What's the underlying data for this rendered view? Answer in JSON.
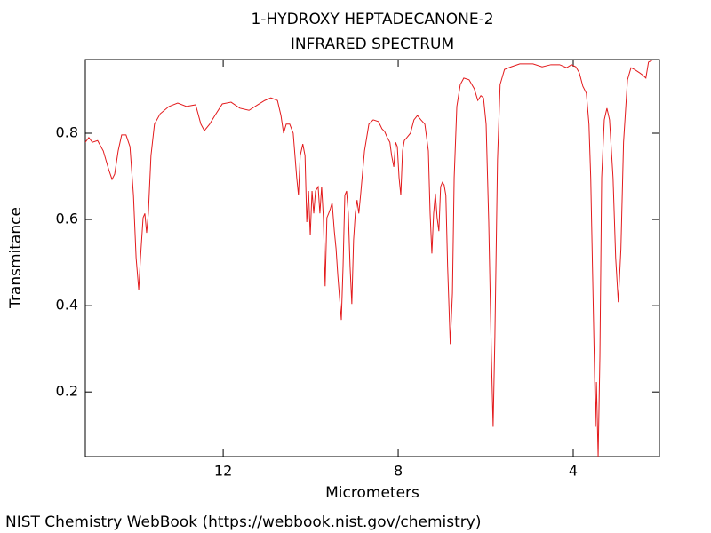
{
  "chart_data": {
    "type": "line",
    "title": "1-HYDROXY HEPTADECANONE-2",
    "subtitle": "INFRARED SPECTRUM",
    "x_label": "Micrometers",
    "y_label": "Transmitance",
    "source": "NIST Chemistry WebBook (https://webbook.nist.gov/chemistry)",
    "xlim": [
      15.15,
      2.03
    ],
    "ylim": [
      0.05,
      0.971
    ],
    "xticks": [
      12,
      8,
      4
    ],
    "yticks": [
      0.2,
      0.4,
      0.6,
      0.8
    ],
    "grid": false,
    "x": [
      15.15,
      15.07,
      14.99,
      14.87,
      14.74,
      14.62,
      14.54,
      14.48,
      14.4,
      14.32,
      14.22,
      14.13,
      14.05,
      13.99,
      13.93,
      13.89,
      13.83,
      13.79,
      13.75,
      13.71,
      13.65,
      13.57,
      13.44,
      13.24,
      13.04,
      12.84,
      12.63,
      12.51,
      12.43,
      12.31,
      12.19,
      12.02,
      11.82,
      11.62,
      11.41,
      11.21,
      11.05,
      10.91,
      10.76,
      10.68,
      10.62,
      10.56,
      10.48,
      10.4,
      10.32,
      10.28,
      10.24,
      10.18,
      10.13,
      10.09,
      10.05,
      10.01,
      9.97,
      9.93,
      9.89,
      9.83,
      9.79,
      9.75,
      9.71,
      9.67,
      9.63,
      9.59,
      9.55,
      9.51,
      9.46,
      9.42,
      9.38,
      9.34,
      9.3,
      9.26,
      9.22,
      9.18,
      9.14,
      9.1,
      9.06,
      9.02,
      8.98,
      8.94,
      8.9,
      8.86,
      8.77,
      8.67,
      8.57,
      8.45,
      8.37,
      8.31,
      8.25,
      8.19,
      8.15,
      8.1,
      8.06,
      8.02,
      7.98,
      7.94,
      7.9,
      7.86,
      7.8,
      7.72,
      7.64,
      7.56,
      7.48,
      7.39,
      7.31,
      7.27,
      7.23,
      7.19,
      7.15,
      7.11,
      7.07,
      7.03,
      6.99,
      6.95,
      6.91,
      6.87,
      6.81,
      6.76,
      6.72,
      6.66,
      6.58,
      6.5,
      6.38,
      6.26,
      6.18,
      6.11,
      6.05,
      5.99,
      5.93,
      5.87,
      5.83,
      5.79,
      5.73,
      5.67,
      5.57,
      5.42,
      5.22,
      4.92,
      4.71,
      4.51,
      4.31,
      4.15,
      4.04,
      3.94,
      3.86,
      3.78,
      3.7,
      3.64,
      3.6,
      3.56,
      3.52,
      3.49,
      3.47,
      3.43,
      3.39,
      3.35,
      3.29,
      3.23,
      3.17,
      3.09,
      3.03,
      2.97,
      2.91,
      2.85,
      2.76,
      2.68,
      2.6,
      2.48,
      2.4,
      2.34,
      2.28,
      2.17,
      2.03
    ],
    "series": [
      {
        "name": "Transmitance",
        "color": "#e31a1c",
        "values": [
          0.779,
          0.79,
          0.779,
          0.783,
          0.759,
          0.717,
          0.693,
          0.705,
          0.759,
          0.796,
          0.796,
          0.769,
          0.656,
          0.511,
          0.437,
          0.511,
          0.604,
          0.614,
          0.569,
          0.614,
          0.748,
          0.821,
          0.845,
          0.862,
          0.87,
          0.862,
          0.866,
          0.821,
          0.806,
          0.821,
          0.841,
          0.868,
          0.872,
          0.858,
          0.853,
          0.866,
          0.876,
          0.882,
          0.876,
          0.841,
          0.8,
          0.821,
          0.821,
          0.8,
          0.697,
          0.656,
          0.748,
          0.775,
          0.748,
          0.594,
          0.666,
          0.563,
          0.666,
          0.614,
          0.666,
          0.676,
          0.614,
          0.676,
          0.604,
          0.445,
          0.604,
          0.614,
          0.625,
          0.639,
          0.573,
          0.532,
          0.47,
          0.418,
          0.367,
          0.491,
          0.656,
          0.666,
          0.614,
          0.491,
          0.404,
          0.552,
          0.614,
          0.645,
          0.614,
          0.656,
          0.759,
          0.821,
          0.831,
          0.827,
          0.81,
          0.804,
          0.79,
          0.779,
          0.748,
          0.722,
          0.779,
          0.769,
          0.697,
          0.656,
          0.759,
          0.783,
          0.79,
          0.8,
          0.831,
          0.841,
          0.831,
          0.821,
          0.759,
          0.614,
          0.521,
          0.614,
          0.66,
          0.604,
          0.573,
          0.676,
          0.686,
          0.68,
          0.656,
          0.491,
          0.311,
          0.429,
          0.697,
          0.862,
          0.913,
          0.928,
          0.924,
          0.903,
          0.876,
          0.887,
          0.882,
          0.821,
          0.594,
          0.284,
          0.119,
          0.326,
          0.738,
          0.913,
          0.948,
          0.954,
          0.961,
          0.961,
          0.954,
          0.959,
          0.959,
          0.952,
          0.959,
          0.954,
          0.94,
          0.909,
          0.893,
          0.821,
          0.697,
          0.491,
          0.284,
          0.119,
          0.223,
          0.05,
          0.284,
          0.697,
          0.831,
          0.858,
          0.831,
          0.697,
          0.511,
          0.408,
          0.532,
          0.779,
          0.924,
          0.952,
          0.948,
          0.94,
          0.934,
          0.928,
          0.965,
          0.971,
          0.971
        ]
      }
    ]
  }
}
